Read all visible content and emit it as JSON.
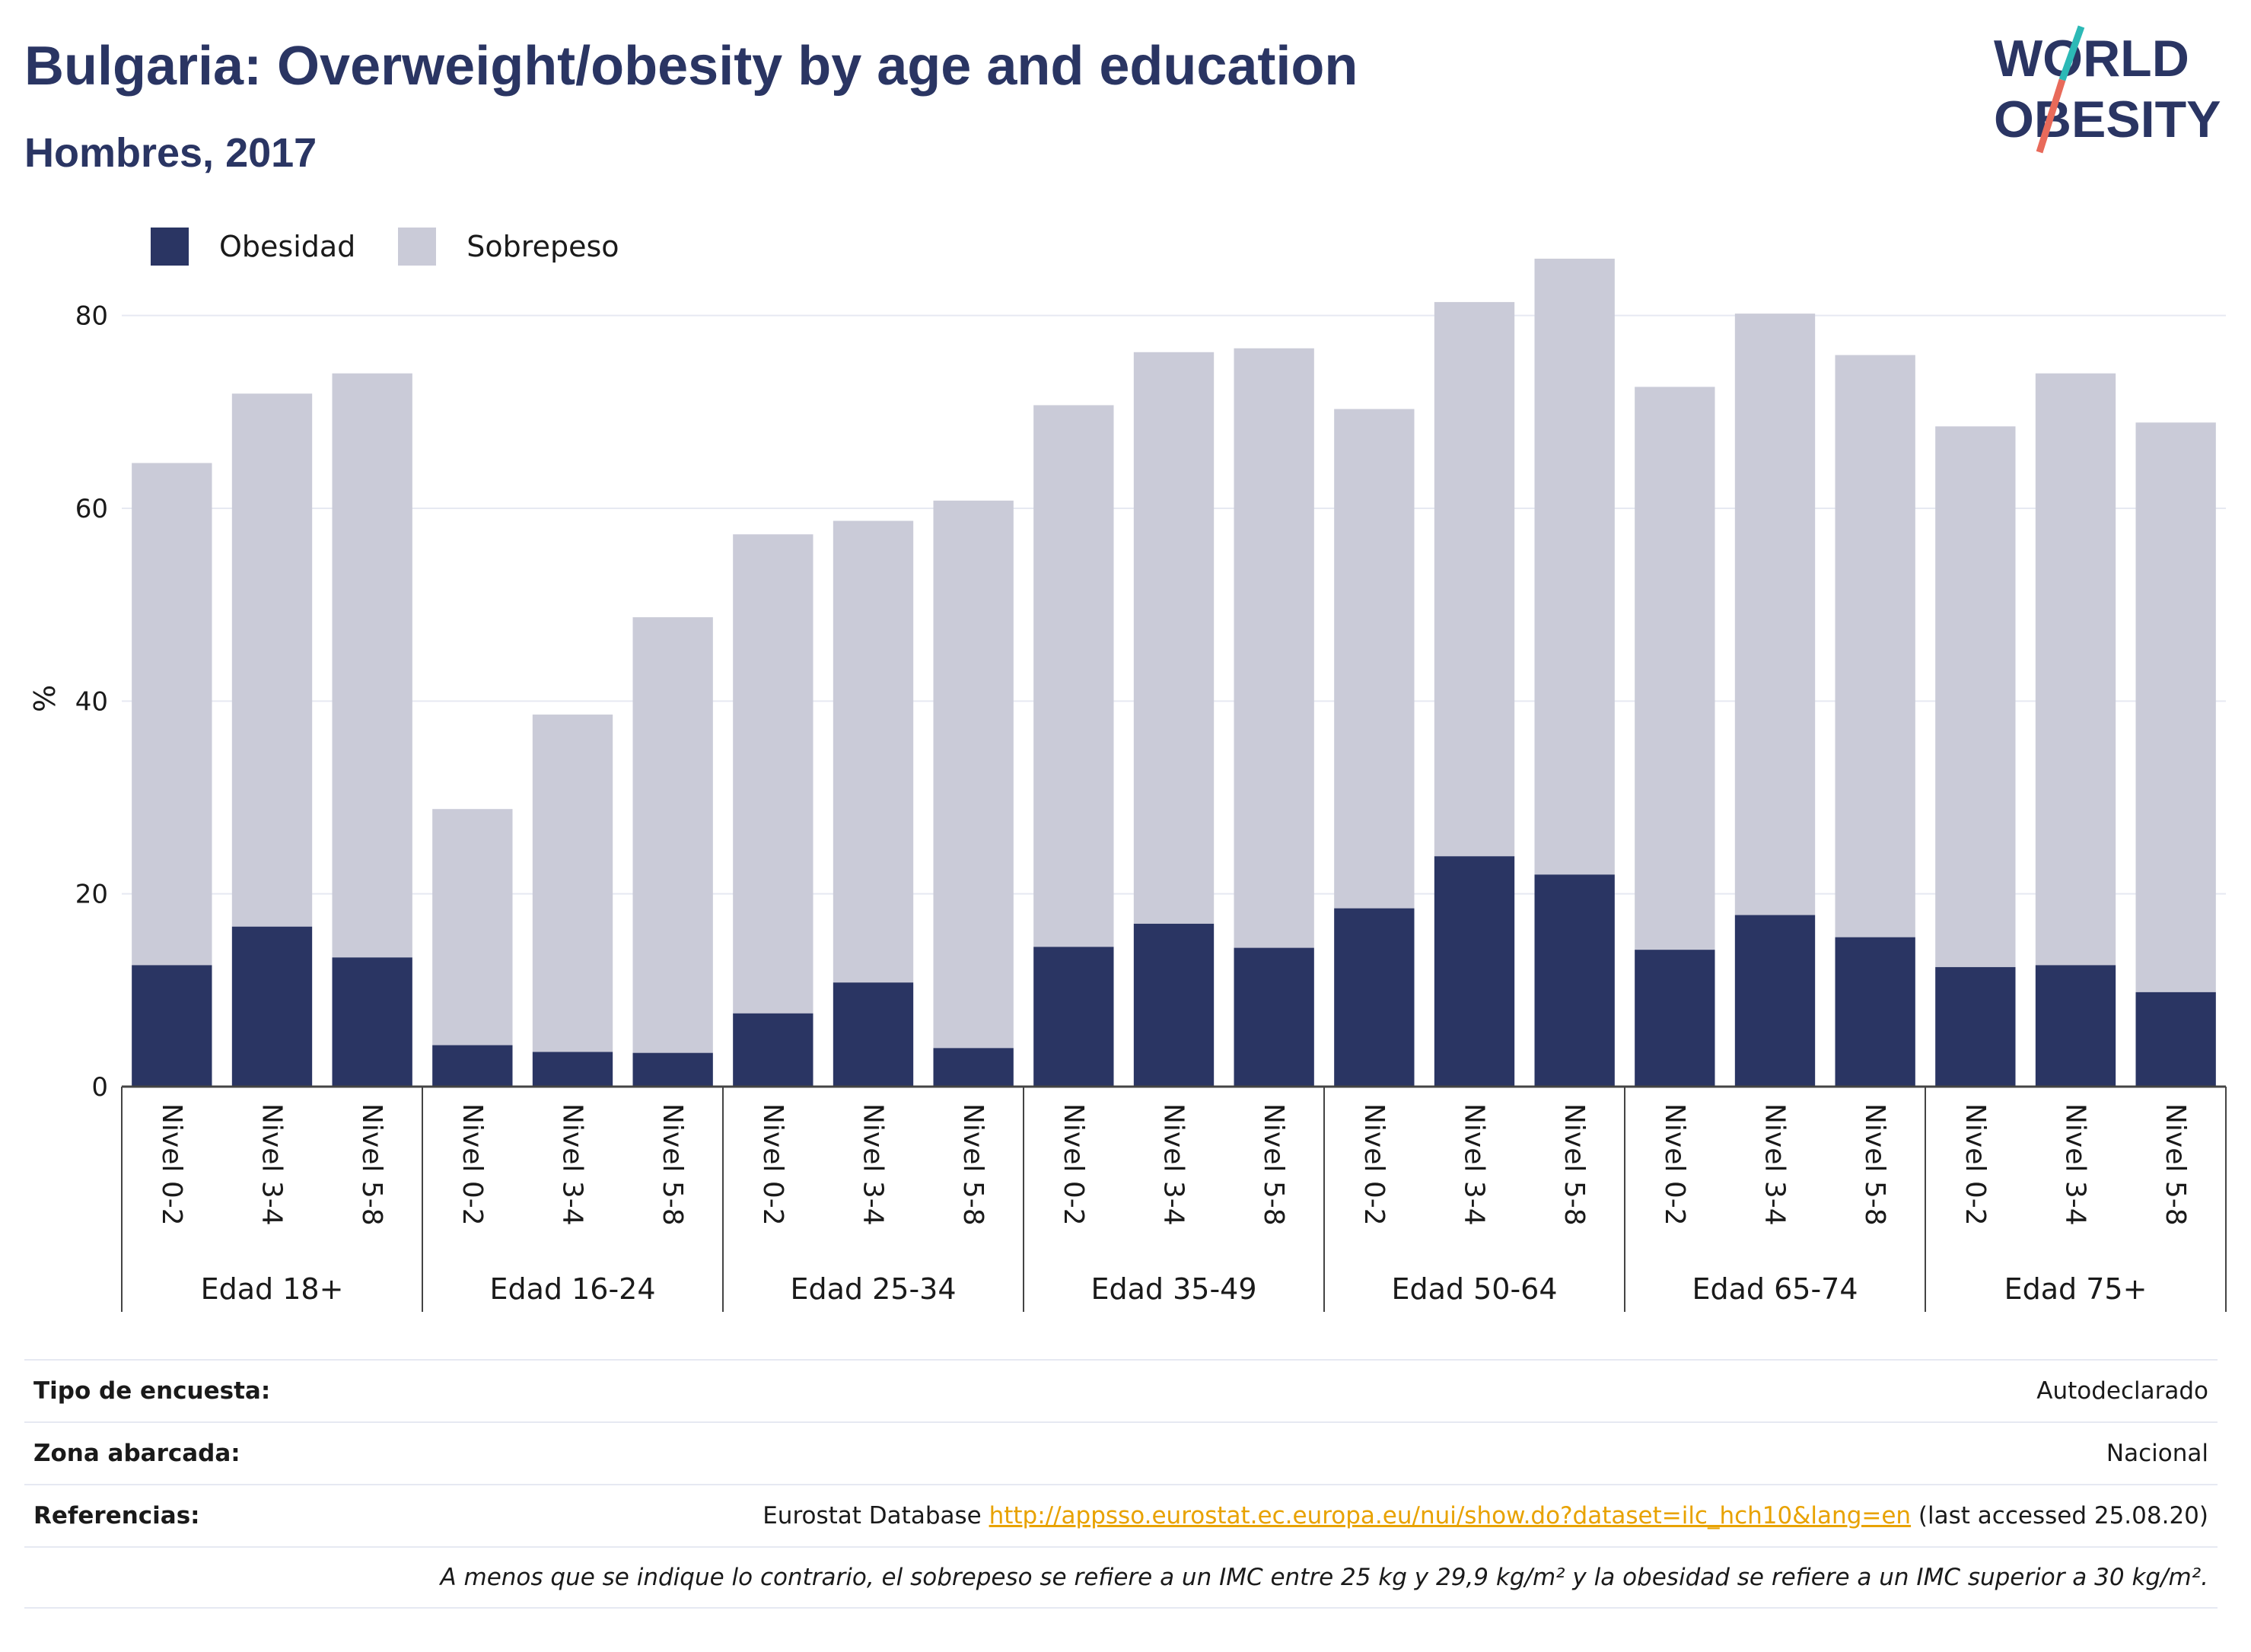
{
  "header": {
    "title": "Bulgaria: Overweight/obesity by age and education",
    "subtitle": "Hombres, 2017",
    "logo_line1": "WORLD",
    "logo_line2": "OBESITY"
  },
  "colors": {
    "obesity": "#2a3563",
    "overweight": "#cacbd8",
    "text": "#2a3563",
    "grid": "#e6e9f2",
    "link": "#e8a200",
    "logo_teal": "#2cb9b6",
    "logo_coral": "#e86a5a"
  },
  "legend": {
    "items": [
      {
        "label": "Obesidad",
        "color": "#2a3563"
      },
      {
        "label": "Sobrepeso",
        "color": "#cacbd8"
      }
    ]
  },
  "chart_data": {
    "type": "bar",
    "stacked": true,
    "ylabel": "%",
    "ylim": [
      0,
      90
    ],
    "yticks": [
      0,
      20,
      40,
      60,
      80
    ],
    "grid": true,
    "legend_position": "top-left",
    "groups": [
      {
        "label": "Edad 18+",
        "categories": [
          "Nivel 0-2",
          "Nivel 3-4",
          "Nivel 5-8"
        ]
      },
      {
        "label": "Edad 16-24",
        "categories": [
          "Nivel 0-2",
          "Nivel 3-4",
          "Nivel 5-8"
        ]
      },
      {
        "label": "Edad 25-34",
        "categories": [
          "Nivel 0-2",
          "Nivel 3-4",
          "Nivel 5-8"
        ]
      },
      {
        "label": "Edad 35-49",
        "categories": [
          "Nivel 0-2",
          "Nivel 3-4",
          "Nivel 5-8"
        ]
      },
      {
        "label": "Edad 50-64",
        "categories": [
          "Nivel 0-2",
          "Nivel 3-4",
          "Nivel 5-8"
        ]
      },
      {
        "label": "Edad 65-74",
        "categories": [
          "Nivel 0-2",
          "Nivel 3-4",
          "Nivel 5-8"
        ]
      },
      {
        "label": "Edad 75+",
        "categories": [
          "Nivel 0-2",
          "Nivel 3-4",
          "Nivel 5-8"
        ]
      }
    ],
    "series": [
      {
        "name": "Obesidad",
        "values": [
          12.6,
          16.6,
          13.4,
          4.3,
          3.6,
          3.5,
          7.6,
          10.8,
          4.0,
          14.5,
          16.9,
          14.4,
          18.5,
          23.9,
          22.0,
          14.2,
          17.8,
          15.5,
          12.4,
          12.6,
          9.8
        ]
      },
      {
        "name": "Sobrepeso",
        "values": [
          52.1,
          55.3,
          60.6,
          24.5,
          35.0,
          45.2,
          49.7,
          47.9,
          56.8,
          56.2,
          59.3,
          62.2,
          51.8,
          57.5,
          63.9,
          58.4,
          62.4,
          60.4,
          56.1,
          61.4,
          59.1
        ]
      }
    ]
  },
  "info": {
    "survey_key": "Tipo de encuesta:",
    "survey_value": "Autodeclarado",
    "area_key": "Zona abarcada:",
    "area_value": "Nacional",
    "ref_key": "Referencias:",
    "ref_prefix": "Eurostat Database",
    "ref_link": "http://appsso.eurostat.ec.europa.eu/nui/show.do?dataset=ilc_hch10&lang=en",
    "ref_suffix": "(last accessed 25.08.20)",
    "note": "A menos que se indique lo contrario, el sobrepeso se refiere a un IMC entre 25 kg y 29,9 kg/m² y la obesidad se refiere a un IMC superior a 30 kg/m²."
  }
}
